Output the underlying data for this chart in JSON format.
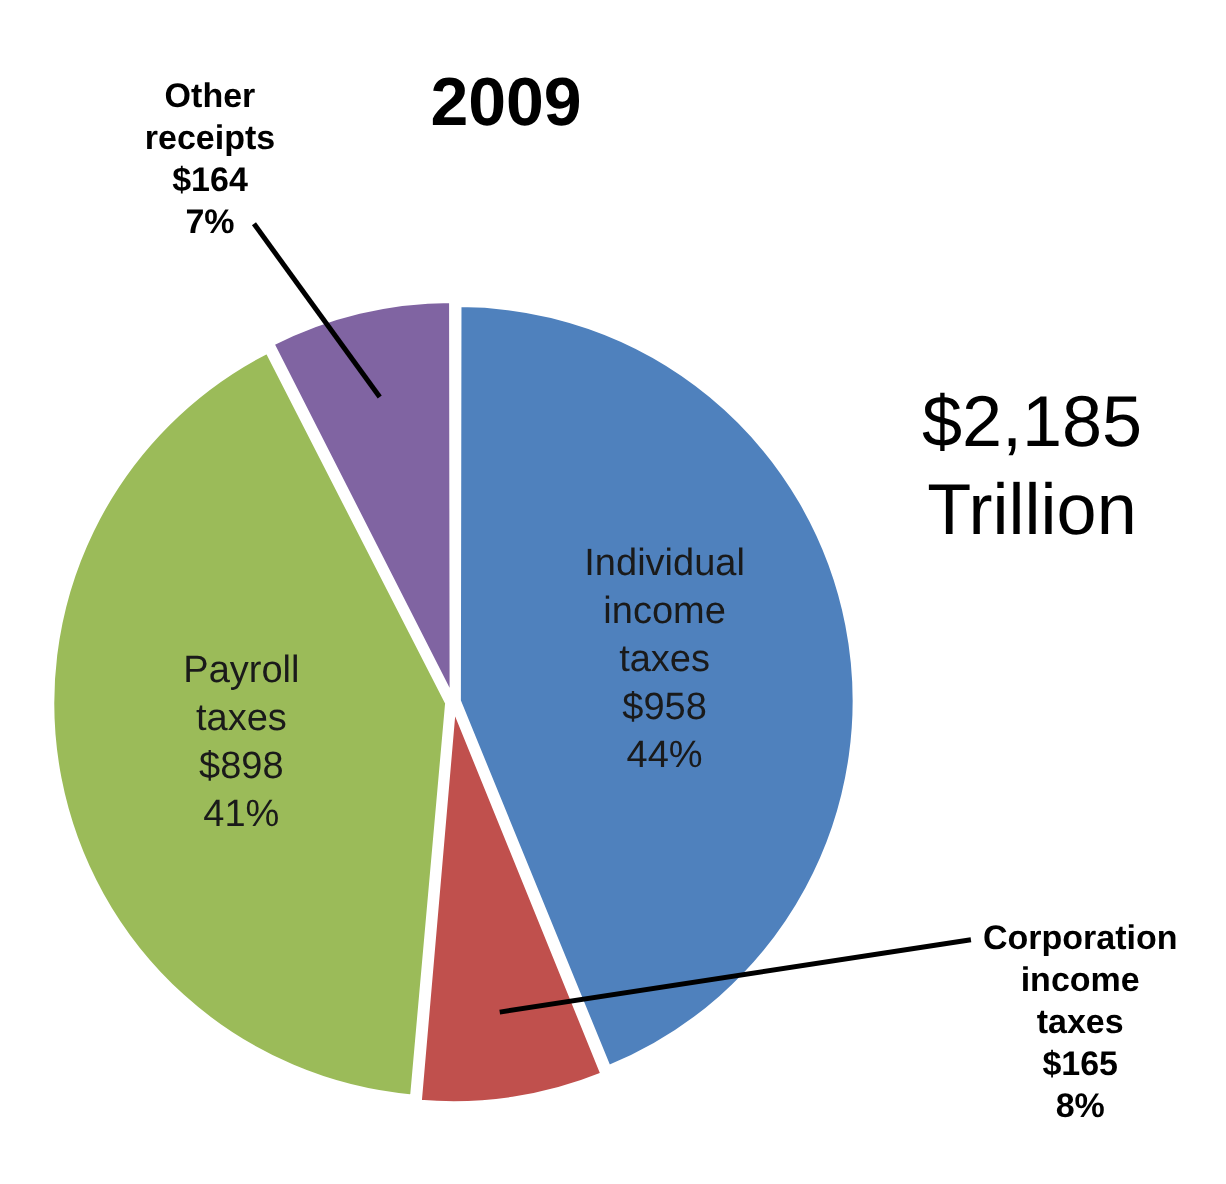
{
  "chart_data": {
    "type": "pie",
    "title": "2009",
    "categories": [
      "Individual income taxes",
      "Corporation income taxes",
      "Payroll taxes",
      "Other receipts"
    ],
    "values": [
      958,
      165,
      898,
      164
    ],
    "colors": [
      "#4f81bd",
      "#c0504d",
      "#9bbb59",
      "#8064a2"
    ],
    "value_labels": [
      "$958 44%",
      "$165 8%",
      "$898 41%",
      "$164 7%"
    ],
    "annotations": [
      "$2,185 Trillion"
    ],
    "legend": false
  }
}
